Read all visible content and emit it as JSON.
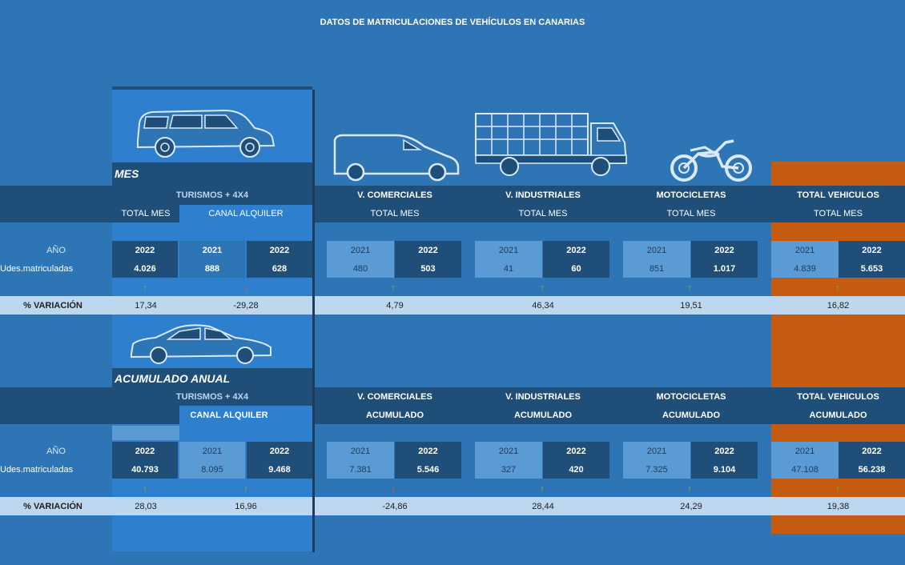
{
  "title": "DATOS DE MATRICULACIONES DE VEHÍCULOS EN CANARIAS",
  "sections": {
    "mes": {
      "label": "MES",
      "groups": {
        "turismos": "TURISMOS + 4X4",
        "comerciales": "V. COMERCIALES",
        "industriales": "V. INDUSTRIALES",
        "motos": "MOTOCICLETAS",
        "total": "TOTAL VEHICULOS"
      },
      "sub": {
        "turismos_total": "TOTAL MES",
        "turismos_canal": "CANAL ALQUILER",
        "comerciales": "TOTAL MES",
        "industriales": "TOTAL MES",
        "motos": "TOTAL MES",
        "total": "TOTAL MES"
      },
      "row_year_label": "AÑO",
      "row_units_label": "Udes.matriculadas",
      "row_var_label": "% VARIACIÓN",
      "years": {
        "t1": "2022",
        "t2": "2021",
        "t3": "2022",
        "c1": "2021",
        "c2": "2022",
        "i1": "2021",
        "i2": "2022",
        "m1": "2021",
        "m2": "2022",
        "v1": "2021",
        "v2": "2022"
      },
      "units": {
        "t1": "4.026",
        "t2": "888",
        "t3": "628",
        "c1": "480",
        "c2": "503",
        "i1": "41",
        "i2": "60",
        "m1": "851",
        "m2": "1.017",
        "v1": "4.839",
        "v2": "5.653"
      },
      "arrows": {
        "t": "↑",
        "tc": "↓",
        "c": "↑",
        "i": "↑",
        "m": "↑",
        "v": "↑"
      },
      "variation": {
        "t": "17,34",
        "tc": "-29,28",
        "c": "4,79",
        "i": "46,34",
        "m": "19,51",
        "v": "16,82"
      }
    },
    "anual": {
      "label": "ACUMULADO ANUAL",
      "groups": {
        "turismos": "TURISMOS + 4X4",
        "comerciales": "V. COMERCIALES",
        "industriales": "V. INDUSTRIALES",
        "motos": "MOTOCICLETAS",
        "total": "TOTAL VEHICULOS"
      },
      "sub": {
        "turismos_canal": "CANAL ALQUILER",
        "comerciales": "ACUMULADO",
        "industriales": "ACUMULADO",
        "motos": "ACUMULADO",
        "total": "ACUMULADO"
      },
      "row_year_label": "AÑO",
      "row_units_label": "Udes.matriculadas",
      "row_var_label": "% VARIACIÓN",
      "years": {
        "t1": "2022",
        "t2": "2021",
        "t3": "2022",
        "c1": "2021",
        "c2": "2022",
        "i1": "2021",
        "i2": "2022",
        "m1": "2021",
        "m2": "2022",
        "v1": "2021",
        "v2": "2022"
      },
      "units": {
        "t1": "40.793",
        "t2": "8.095",
        "t3": "9.468",
        "c1": "7.381",
        "c2": "5.546",
        "i1": "327",
        "i2": "420",
        "m1": "7.325",
        "m2": "9.104",
        "v1": "47.108",
        "v2": "56.238"
      },
      "arrows": {
        "t": "↑",
        "tc": "↑",
        "c": "↓",
        "i": "↑",
        "m": "↑",
        "v": "↑"
      },
      "variation": {
        "t": "28,03",
        "tc": "16,96",
        "c": "-24,86",
        "i": "28,44",
        "m": "24,29",
        "v": "19,38"
      }
    }
  },
  "icons": [
    "suv-icon",
    "van-icon",
    "truck-icon",
    "motorcycle-icon",
    "sedan-icon"
  ],
  "colors": {
    "background": "#2e75b6",
    "navy": "#1f4e79",
    "orange": "#c55a11",
    "pale": "#bdd7ee",
    "arrow_up": "#70ad47",
    "arrow_down": "#e05a3a"
  }
}
